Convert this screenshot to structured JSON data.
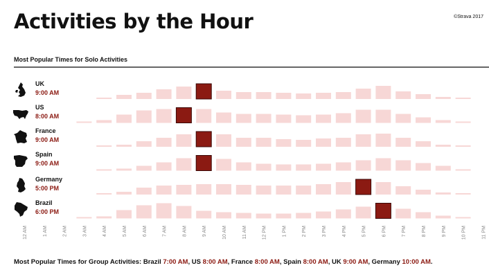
{
  "header": {
    "title": "Activities by the Hour",
    "credit": "©Strava 2017",
    "subtitle": "Most Popular Times for Solo Activities"
  },
  "colors": {
    "peak": "#8b1a12",
    "bar": "#f7d7d6",
    "label_accent": "#8b1a12"
  },
  "rows": [
    {
      "country": "UK",
      "time": "9:00 AM",
      "icon": "uk-map-icon"
    },
    {
      "country": "US",
      "time": "8:00 AM",
      "icon": "us-map-icon"
    },
    {
      "country": "France",
      "time": "9:00 AM",
      "icon": "france-map-icon"
    },
    {
      "country": "Spain",
      "time": "9:00 AM",
      "icon": "spain-map-icon"
    },
    {
      "country": "Germany",
      "time": "5:00 PM",
      "icon": "germany-map-icon"
    },
    {
      "country": "Brazil",
      "time": "6:00 PM",
      "icon": "brazil-map-icon"
    }
  ],
  "chart_data": {
    "type": "heatmap",
    "title": "Most Popular Times for Solo Activities",
    "encoding": "square size ~ relative popularity (0-1); peak hour highlighted in dark red",
    "x": [
      "12 AM",
      "1 AM",
      "2 AM",
      "3 AM",
      "4 AM",
      "5 AM",
      "6 AM",
      "7 AM",
      "8 AM",
      "9 AM",
      "10 AM",
      "11 AM",
      "12 PM",
      "1 PM",
      "2 PM",
      "3 PM",
      "4 PM",
      "5 PM",
      "6 PM",
      "7 PM",
      "8 PM",
      "9 PM",
      "10 PM",
      "11 PM"
    ],
    "series": [
      {
        "name": "UK",
        "peak": "9 AM",
        "values": [
          0,
          0,
          0,
          0,
          0.05,
          0.25,
          0.4,
          0.65,
          0.8,
          1,
          0.55,
          0.45,
          0.45,
          0.4,
          0.35,
          0.4,
          0.45,
          0.7,
          0.85,
          0.5,
          0.3,
          0.15,
          0.05,
          0
        ]
      },
      {
        "name": "US",
        "peak": "8 AM",
        "values": [
          0,
          0,
          0,
          0.05,
          0.2,
          0.55,
          0.8,
          0.9,
          1,
          0.9,
          0.7,
          0.6,
          0.6,
          0.55,
          0.5,
          0.55,
          0.65,
          0.85,
          0.85,
          0.6,
          0.35,
          0.2,
          0.1,
          0
        ]
      },
      {
        "name": "France",
        "peak": "9 AM",
        "values": [
          0,
          0,
          0,
          0,
          0.05,
          0.15,
          0.35,
          0.6,
          0.8,
          1,
          0.8,
          0.6,
          0.6,
          0.5,
          0.45,
          0.55,
          0.6,
          0.8,
          0.85,
          0.6,
          0.35,
          0.15,
          0.05,
          0
        ]
      },
      {
        "name": "Spain",
        "peak": "9 AM",
        "values": [
          0,
          0,
          0,
          0,
          0.05,
          0.15,
          0.3,
          0.55,
          0.8,
          1,
          0.75,
          0.55,
          0.45,
          0.4,
          0.4,
          0.45,
          0.55,
          0.7,
          0.8,
          0.7,
          0.5,
          0.3,
          0.1,
          0
        ]
      },
      {
        "name": "Germany",
        "peak": "5 PM",
        "values": [
          0,
          0,
          0,
          0,
          0.05,
          0.2,
          0.45,
          0.6,
          0.65,
          0.7,
          0.7,
          0.65,
          0.6,
          0.6,
          0.6,
          0.7,
          0.8,
          1,
          0.8,
          0.55,
          0.3,
          0.15,
          0.05,
          0
        ]
      },
      {
        "name": "Brazil",
        "peak": "6 PM",
        "values": [
          0,
          0,
          0,
          0.05,
          0.15,
          0.55,
          0.85,
          1,
          0.8,
          0.5,
          0.4,
          0.35,
          0.3,
          0.3,
          0.35,
          0.45,
          0.6,
          0.75,
          1,
          0.65,
          0.4,
          0.2,
          0.05,
          0
        ]
      }
    ]
  },
  "footer": {
    "parts": [
      {
        "text": "Most Popular Times for Group Activities: Brazil ",
        "accent": false
      },
      {
        "text": "7:00 AM",
        "accent": true
      },
      {
        "text": ", US ",
        "accent": false
      },
      {
        "text": "8:00 AM",
        "accent": true
      },
      {
        "text": ", France ",
        "accent": false
      },
      {
        "text": "8:00 AM",
        "accent": true
      },
      {
        "text": ", Spain ",
        "accent": false
      },
      {
        "text": "8:00 AM",
        "accent": true
      },
      {
        "text": ", UK ",
        "accent": false
      },
      {
        "text": "9:00 AM",
        "accent": true
      },
      {
        "text": ", Germany ",
        "accent": false
      },
      {
        "text": "10:00 AM",
        "accent": true
      },
      {
        "text": ".",
        "accent": false
      }
    ]
  }
}
